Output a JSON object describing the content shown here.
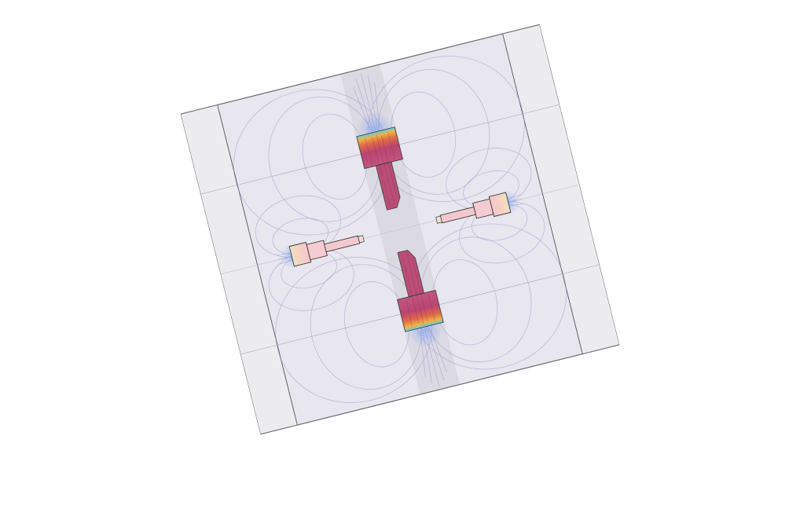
{
  "scene": {
    "background": "#ffffff",
    "domain_fill": "#e9e7ef",
    "outer_border_fill": "#f1f1f3",
    "inner_band_fill": "#e4e3e9",
    "vertical_band_fill": "#d9d7df",
    "boundary_stroke": "#5f5f66",
    "field_line_color": "#8e88c8",
    "magnet_outline": "#3a3a3a",
    "magnet_gradient": [
      "#b83a68",
      "#e2623a",
      "#f2b33a",
      "#9ed67a",
      "#58c9e6"
    ],
    "magnets": [
      {
        "id": "magnet-top",
        "orientation": "vertical",
        "pole": "north"
      },
      {
        "id": "magnet-bottom",
        "orientation": "vertical",
        "pole": "south"
      },
      {
        "id": "magnet-left",
        "orientation": "horizontal",
        "pole": "west"
      },
      {
        "id": "magnet-right",
        "orientation": "horizontal",
        "pole": "east"
      }
    ]
  }
}
